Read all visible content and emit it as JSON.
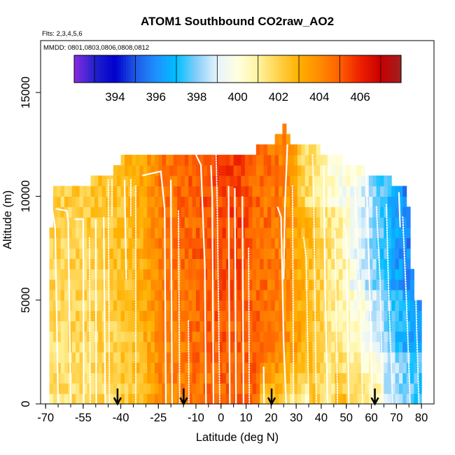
{
  "chart_data": {
    "type": "heatmap",
    "title": "ATOM1 Southbound CO2raw_AO2",
    "subtitle_flights": "Flts: 2,3,4,5,6",
    "subtitle_dates": "MMDD: 0801,0803,0806,0808,0812",
    "xlabel": "Latitude (deg N)",
    "ylabel": "Altitude (m)",
    "xlim": [
      -72,
      85
    ],
    "ylim": [
      0,
      17500
    ],
    "xticks": [
      -70,
      -55,
      -40,
      -25,
      -10,
      0,
      10,
      20,
      30,
      40,
      50,
      60,
      70,
      80
    ],
    "xtick_labels": [
      "-70",
      "-55",
      "-40",
      "-25",
      "-10",
      "0",
      "10",
      "20",
      "30",
      "40",
      "50",
      "60",
      "70",
      "80"
    ],
    "xticks_minor_step": 5,
    "yticks": [
      0,
      5000,
      10000,
      15000
    ],
    "ytick_labels": [
      "0",
      "5000",
      "10000",
      "15000"
    ],
    "colorbar": {
      "min": 392,
      "max": 408,
      "ticks": [
        394,
        396,
        398,
        400,
        402,
        404,
        406
      ],
      "tick_labels": [
        "394",
        "396",
        "398",
        "400",
        "402",
        "404",
        "406"
      ],
      "colors": [
        "#8a2be2",
        "#2222cc",
        "#0000cd",
        "#1e5ae6",
        "#1e90ff",
        "#00bfff",
        "#87cefa",
        "#e6f4fc",
        "#ffffe0",
        "#fff4a0",
        "#ffd24a",
        "#ffb000",
        "#ff8c00",
        "#ff6000",
        "#ee2000",
        "#c80000",
        "#a02020"
      ]
    },
    "grid": {
      "lat_step": 1.5,
      "alt_step": 500,
      "ceiling_profile": {
        "lat": [
          -68.5,
          -67,
          -61,
          -52,
          -43,
          -40,
          -35,
          -29,
          -25,
          -15,
          -10,
          -5,
          0,
          5,
          8,
          14,
          20,
          22,
          26.2,
          27,
          33,
          37,
          40,
          45,
          49,
          54,
          58,
          61,
          63,
          68,
          70,
          72,
          74.5,
          77,
          79.5
        ],
        "alt": [
          6500,
          10500,
          10500,
          10500,
          11000,
          11500,
          12000,
          12000,
          12000,
          12000,
          12000,
          12000,
          12000,
          12000,
          12000,
          12000,
          12500,
          12500,
          13500,
          12500,
          12500,
          12500,
          12000,
          12000,
          11500,
          11500,
          11000,
          11000,
          11000,
          10500,
          10500,
          10500,
          10000,
          5000,
          5000
        ]
      },
      "field_model": "co2 = 403.5 + 1.4*exp(-((lat-5)/28)^2) - 0.11*max(0,lat-22) - 1.9*(1-exp(-max(0,-25-lat)/10)) + 0.6*(alt/12000)*(lat<10) + noise(+-0.7)"
    },
    "arrows_lat": [
      -41.3,
      -14.9,
      20.2,
      61.4
    ],
    "profiles": [
      {
        "style": "solid",
        "points": [
          [
            -67.5,
            9500
          ],
          [
            -66.2,
            8500
          ],
          [
            -65.0,
            0
          ]
        ]
      },
      {
        "style": "solid",
        "points": [
          [
            -66.0,
            9400
          ],
          [
            -61.5,
            9300
          ],
          [
            -61.0,
            8800
          ],
          [
            -60.0,
            0
          ]
        ]
      },
      {
        "style": "solid",
        "points": [
          [
            -58.5,
            8900
          ],
          [
            -55.0,
            8900
          ],
          [
            -54.8,
            0
          ]
        ]
      },
      {
        "style": "dotted",
        "points": [
          [
            -52.5,
            8000
          ],
          [
            -52.2,
            0
          ]
        ]
      },
      {
        "style": "solid",
        "points": [
          [
            -50.0,
            8900
          ],
          [
            -49.8,
            0
          ]
        ]
      },
      {
        "style": "solid",
        "points": [
          [
            -46.8,
            9000
          ],
          [
            -46.2,
            0
          ]
        ]
      },
      {
        "style": "dotted",
        "points": [
          [
            -45.0,
            10800
          ],
          [
            -44.5,
            0
          ]
        ]
      },
      {
        "style": "dotted",
        "points": [
          [
            -43.5,
            10800
          ],
          [
            -43.5,
            9000
          ]
        ]
      },
      {
        "style": "solid",
        "points": [
          [
            -38.5,
            10800
          ],
          [
            -37.8,
            6000
          ]
        ]
      },
      {
        "style": "dotted",
        "points": [
          [
            -36.0,
            10800
          ],
          [
            -36.0,
            9000
          ]
        ]
      },
      {
        "style": "dotted",
        "points": [
          [
            -34.0,
            10500
          ],
          [
            -34.0,
            0
          ]
        ]
      },
      {
        "style": "solid",
        "points": [
          [
            -31.5,
            11000
          ],
          [
            -24.0,
            11200
          ],
          [
            -22.5,
            9400
          ],
          [
            -22.0,
            0
          ]
        ]
      },
      {
        "style": "solid",
        "points": [
          [
            -20.0,
            10800
          ],
          [
            -19.5,
            0
          ]
        ]
      },
      {
        "style": "dotted",
        "points": [
          [
            -17.0,
            9300
          ],
          [
            -16.5,
            0
          ]
        ]
      },
      {
        "style": "dotted",
        "points": [
          [
            -13.0,
            4000
          ],
          [
            -12.8,
            0
          ]
        ]
      },
      {
        "style": "solid",
        "points": [
          [
            -10.0,
            12000
          ],
          [
            -8.0,
            11500
          ],
          [
            -6.5,
            6700
          ],
          [
            -6.0,
            0
          ]
        ]
      },
      {
        "style": "solid",
        "points": [
          [
            -4.0,
            11500
          ],
          [
            -3.5,
            10000
          ],
          [
            -3.0,
            0
          ]
        ]
      },
      {
        "style": "dotted",
        "points": [
          [
            -2.0,
            12000
          ],
          [
            -1.5,
            9500
          ],
          [
            -0.5,
            0
          ]
        ]
      },
      {
        "style": "solid",
        "points": [
          [
            3.0,
            10500
          ],
          [
            3.5,
            0
          ]
        ]
      },
      {
        "style": "solid",
        "points": [
          [
            5.5,
            10400
          ],
          [
            6.0,
            0
          ]
        ]
      },
      {
        "style": "solid",
        "points": [
          [
            8.5,
            10000
          ],
          [
            9.0,
            0
          ]
        ]
      },
      {
        "style": "dotted",
        "points": [
          [
            11.0,
            7500
          ],
          [
            11.3,
            0
          ]
        ]
      },
      {
        "style": "solid",
        "points": [
          [
            17.0,
            1800
          ],
          [
            17.2,
            0
          ]
        ]
      },
      {
        "style": "solid",
        "points": [
          [
            22.5,
            9500
          ],
          [
            24.0,
            9000
          ],
          [
            25.0,
            3000
          ],
          [
            26.0,
            0
          ]
        ]
      },
      {
        "style": "solid",
        "points": [
          [
            26.5,
            12500
          ],
          [
            25.5,
            9500
          ],
          [
            25.0,
            6000
          ]
        ]
      },
      {
        "style": "dotted",
        "points": [
          [
            28.5,
            10500
          ],
          [
            29.0,
            0
          ]
        ]
      },
      {
        "style": "dotted",
        "points": [
          [
            33.0,
            8000
          ],
          [
            34.0,
            7000
          ],
          [
            35.0,
            0
          ]
        ]
      },
      {
        "style": "dotted",
        "points": [
          [
            36.5,
            12000
          ],
          [
            37.0,
            10000
          ],
          [
            38.0,
            0
          ]
        ]
      },
      {
        "style": "solid",
        "points": [
          [
            41.0,
            11500
          ],
          [
            41.5,
            6000
          ],
          [
            42.5,
            0
          ]
        ]
      },
      {
        "style": "dotted",
        "points": [
          [
            45.5,
            8300
          ],
          [
            46.0,
            4000
          ],
          [
            46.5,
            0
          ]
        ]
      },
      {
        "style": "solid",
        "points": [
          [
            49.0,
            8700
          ],
          [
            50.0,
            8200
          ],
          [
            51.0,
            0
          ]
        ]
      },
      {
        "style": "dotted",
        "points": [
          [
            53.0,
            11800
          ],
          [
            54.0,
            9000
          ],
          [
            55.5,
            5000
          ],
          [
            56.5,
            0
          ]
        ]
      },
      {
        "style": "solid",
        "points": [
          [
            58.0,
            11000
          ],
          [
            59.0,
            7000
          ],
          [
            60.5,
            0
          ]
        ]
      },
      {
        "style": "dotted",
        "points": [
          [
            62.0,
            9500
          ],
          [
            63.5,
            6000
          ],
          [
            64.5,
            0
          ]
        ]
      },
      {
        "style": "dotted",
        "points": [
          [
            66.0,
            9600
          ],
          [
            67.0,
            5000
          ],
          [
            68.5,
            0
          ]
        ]
      },
      {
        "style": "solid",
        "points": [
          [
            71.0,
            10200
          ],
          [
            71.5,
            8500
          ]
        ]
      },
      {
        "style": "dotted",
        "points": [
          [
            72.5,
            9000
          ],
          [
            74.0,
            5000
          ],
          [
            75.5,
            0
          ]
        ]
      },
      {
        "style": "dotted",
        "points": [
          [
            77.0,
            9000
          ],
          [
            78.0,
            4000
          ],
          [
            79.0,
            0
          ]
        ]
      }
    ]
  }
}
